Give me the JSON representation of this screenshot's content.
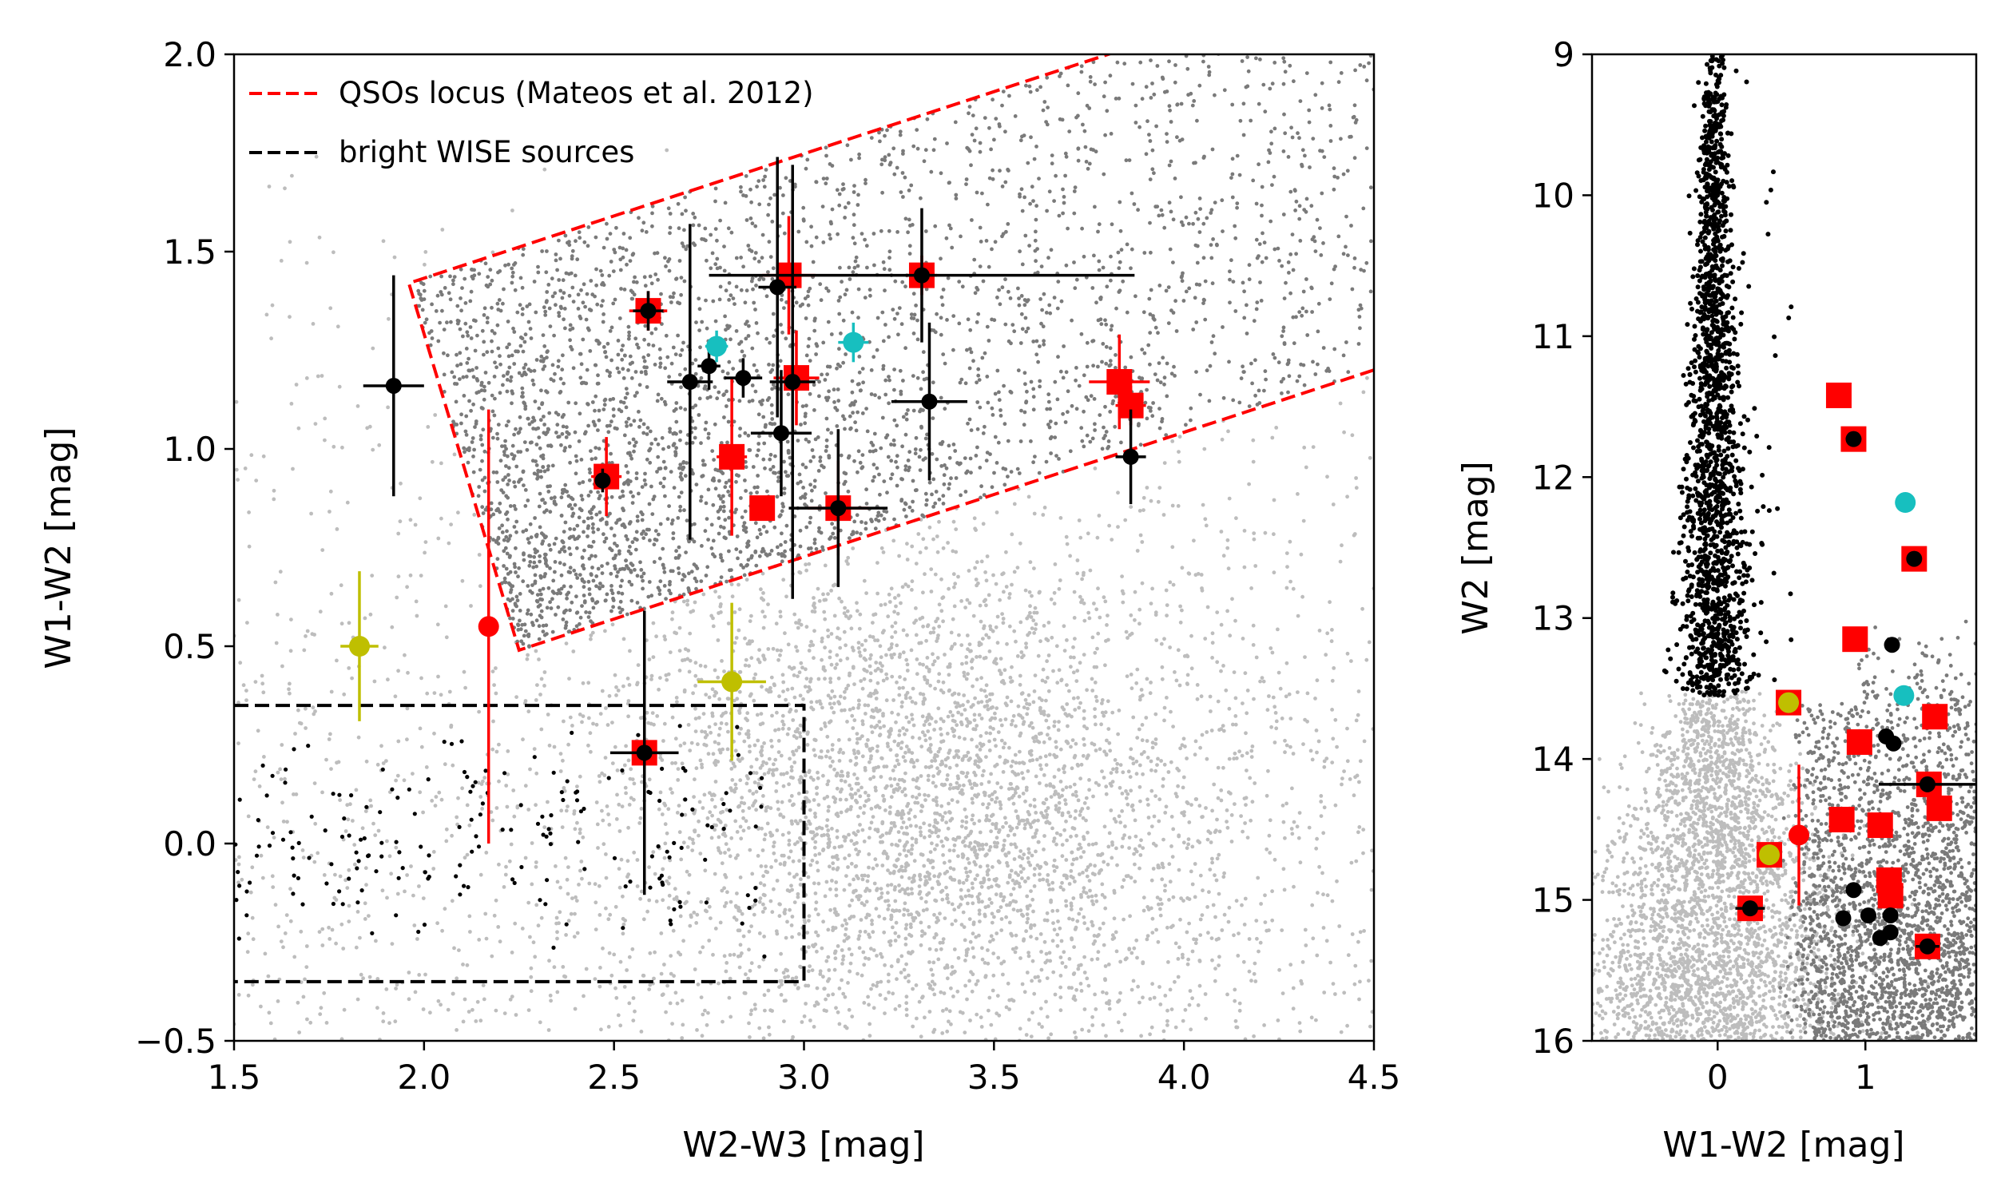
{
  "colors": {
    "background": "#ffffff",
    "light_grey": "#bdbdbd",
    "dark_grey": "#7a7a7a",
    "black": "#000000",
    "red": "#ff0000",
    "cyan": "#17bfbf",
    "olive": "#bfbf00"
  },
  "chart_data": [
    {
      "id": "left",
      "type": "scatter",
      "title": "",
      "xlabel": "W2-W3 [mag]",
      "ylabel": "W1-W2 [mag]",
      "xlim": [
        1.5,
        4.5
      ],
      "ylim": [
        -0.5,
        2.0
      ],
      "xticks": [
        1.5,
        2.0,
        2.5,
        3.0,
        3.5,
        4.0,
        4.5
      ],
      "xtick_labels": [
        "1.5",
        "2.0",
        "2.5",
        "3.0",
        "3.5",
        "4.0",
        "4.5"
      ],
      "yticks": [
        -0.5,
        0.0,
        0.5,
        1.0,
        1.5,
        2.0
      ],
      "ytick_labels": [
        "−0.5",
        "0.0",
        "0.5",
        "1.0",
        "1.5",
        "2.0"
      ],
      "legend": {
        "placement": "upper-left",
        "entries": [
          {
            "label": "QSOs locus (Mateos et al. 2012)",
            "color": "#ff0000",
            "style": "dashed"
          },
          {
            "label": "bright WISE sources",
            "color": "#000000",
            "style": "dashed"
          }
        ]
      },
      "regions": [
        {
          "name": "QSOs locus",
          "color": "#ff0000",
          "style": "dashed",
          "closed": false,
          "path": [
            [
              4.5,
              1.2
            ],
            [
              2.25,
              0.49
            ],
            [
              1.96,
              1.42
            ],
            [
              2.72,
              1.66
            ],
            [
              4.5,
              2.22
            ]
          ]
        },
        {
          "name": "bright WISE sources",
          "color": "#000000",
          "style": "dashed",
          "closed": false,
          "path": [
            [
              1.5,
              0.35
            ],
            [
              3.0,
              0.35
            ],
            [
              3.0,
              -0.35
            ],
            [
              1.5,
              -0.35
            ]
          ]
        }
      ],
      "background_populations": [
        {
          "name": "field sources",
          "color": "#bdbdbd",
          "count": 5200,
          "note": "broad cloud centred near W2-W3 3.3, W1-W2 0.1 with a spread across the panel"
        },
        {
          "name": "sources in QSO locus",
          "color": "#7a7a7a",
          "count": 3400
        },
        {
          "name": "bright WISE sources",
          "color": "#000000",
          "count": 190
        }
      ],
      "series": [
        {
          "name": "red squares",
          "marker": "square",
          "color": "#ff0000",
          "points": [
            {
              "x": 2.48,
              "y": 0.93,
              "xerr": 0.04,
              "yerr": 0.1
            },
            {
              "x": 2.59,
              "y": 1.35,
              "xerr": 0.05,
              "yerr": 0.05
            },
            {
              "x": 2.81,
              "y": 0.98,
              "xerr": 0.04,
              "yerr": 0.2
            },
            {
              "x": 2.89,
              "y": 0.85,
              "xerr": 0.0,
              "yerr": 0.0
            },
            {
              "x": 2.96,
              "y": 1.44,
              "xerr": 0.07,
              "yerr": 0.15
            },
            {
              "x": 2.98,
              "y": 1.18,
              "xerr": 0.06,
              "yerr": 0.12
            },
            {
              "x": 3.09,
              "y": 0.85,
              "xerr": 0.08,
              "yerr": 0.12
            },
            {
              "x": 3.31,
              "y": 1.44,
              "xerr": 0.04,
              "yerr": 0.05
            },
            {
              "x": 3.83,
              "y": 1.17,
              "xerr": 0.08,
              "yerr": 0.12
            },
            {
              "x": 3.86,
              "y": 1.11,
              "xerr": 0.04,
              "yerr": 0.05
            },
            {
              "x": 2.58,
              "y": 0.23,
              "xerr": 0.03,
              "yerr": 0.04
            }
          ]
        },
        {
          "name": "black circles",
          "marker": "circle",
          "color": "#000000",
          "points": [
            {
              "x": 1.92,
              "y": 1.16,
              "xerr": 0.08,
              "yerr": 0.28
            },
            {
              "x": 2.47,
              "y": 0.92,
              "xerr": 0.02,
              "yerr": 0.03
            },
            {
              "x": 2.59,
              "y": 1.35,
              "xerr": 0.04,
              "yerr": 0.05
            },
            {
              "x": 2.7,
              "y": 1.17,
              "xerr": 0.06,
              "yerr": 0.4
            },
            {
              "x": 2.75,
              "y": 1.21,
              "xerr": 0.03,
              "yerr": 0.06
            },
            {
              "x": 2.84,
              "y": 1.18,
              "xerr": 0.05,
              "yerr": 0.05
            },
            {
              "x": 2.93,
              "y": 1.41,
              "xerr": 0.05,
              "yerr": 0.33
            },
            {
              "x": 2.94,
              "y": 1.04,
              "xerr": 0.08,
              "yerr": 0.16
            },
            {
              "x": 2.97,
              "y": 1.17,
              "xerr": 0.06,
              "yerr": 0.55
            },
            {
              "x": 3.09,
              "y": 0.85,
              "xerr": 0.13,
              "yerr": 0.2
            },
            {
              "x": 3.31,
              "y": 1.44,
              "xerr": 0.56,
              "yerr": 0.17
            },
            {
              "x": 3.33,
              "y": 1.12,
              "xerr": 0.1,
              "yerr": 0.2
            },
            {
              "x": 3.86,
              "y": 0.98,
              "xerr": 0.04,
              "yerr": 0.12
            },
            {
              "x": 2.58,
              "y": 0.23,
              "xerr": 0.09,
              "yerr": 0.36
            }
          ]
        },
        {
          "name": "red circles",
          "marker": "circle",
          "color": "#ff0000",
          "points": [
            {
              "x": 2.17,
              "y": 0.55,
              "xerr": 0.0,
              "yerr": 0.55
            }
          ]
        },
        {
          "name": "cyan circles",
          "marker": "circle",
          "color": "#17bfbf",
          "points": [
            {
              "x": 2.77,
              "y": 1.26,
              "xerr": 0.03,
              "yerr": 0.04
            },
            {
              "x": 3.13,
              "y": 1.27,
              "xerr": 0.04,
              "yerr": 0.05
            }
          ]
        },
        {
          "name": "olive circles",
          "marker": "circle",
          "color": "#bfbf00",
          "points": [
            {
              "x": 1.83,
              "y": 0.5,
              "xerr": 0.05,
              "yerr": 0.19
            },
            {
              "x": 2.81,
              "y": 0.41,
              "xerr": 0.09,
              "yerr": 0.2
            }
          ]
        }
      ]
    },
    {
      "id": "right",
      "type": "scatter",
      "title": "",
      "xlabel": "W1-W2 [mag]",
      "ylabel": "W2 [mag]",
      "xlim": [
        -0.85,
        1.75
      ],
      "ylim": [
        16,
        9
      ],
      "y_inverted": true,
      "xticks": [
        0,
        1
      ],
      "xtick_labels": [
        "0",
        "1"
      ],
      "yticks": [
        9,
        10,
        11,
        12,
        13,
        14,
        15,
        16
      ],
      "ytick_labels": [
        "9",
        "10",
        "11",
        "12",
        "13",
        "14",
        "15",
        "16"
      ],
      "background_populations": [
        {
          "name": "bright WISE sources",
          "color": "#000000",
          "count": 1700,
          "note": "narrow sequence at W1-W2 ~ 0, W2 from 9 to 13.5"
        },
        {
          "name": "field sources",
          "color": "#bdbdbd",
          "count": 3200,
          "note": "W2 fainter than ~13.5, W1-W2 ~ 0"
        },
        {
          "name": "sources in QSO locus",
          "color": "#7a7a7a",
          "count": 2600,
          "note": "W2 fainter than ~13, W1-W2 0.5 to 1.75"
        }
      ],
      "series": [
        {
          "name": "red squares",
          "marker": "square",
          "color": "#ff0000",
          "points": [
            {
              "x": 0.82,
              "y": 11.42
            },
            {
              "x": 0.92,
              "y": 11.73
            },
            {
              "x": 1.33,
              "y": 12.58
            },
            {
              "x": 0.93,
              "y": 13.15
            },
            {
              "x": 1.47,
              "y": 13.7
            },
            {
              "x": 0.96,
              "y": 13.88
            },
            {
              "x": 1.43,
              "y": 14.18
            },
            {
              "x": 1.5,
              "y": 14.35
            },
            {
              "x": 0.84,
              "y": 14.43
            },
            {
              "x": 1.1,
              "y": 14.47
            },
            {
              "x": 1.16,
              "y": 14.86
            },
            {
              "x": 1.17,
              "y": 14.97
            },
            {
              "x": 0.48,
              "y": 13.6
            },
            {
              "x": 0.35,
              "y": 14.68
            },
            {
              "x": 0.22,
              "y": 15.06
            },
            {
              "x": 1.42,
              "y": 15.33
            }
          ]
        },
        {
          "name": "black circles",
          "marker": "circle",
          "color": "#000000",
          "points": [
            {
              "x": 0.92,
              "y": 11.73
            },
            {
              "x": 1.33,
              "y": 12.58
            },
            {
              "x": 1.18,
              "y": 13.19
            },
            {
              "x": 1.14,
              "y": 13.84
            },
            {
              "x": 1.19,
              "y": 13.89
            },
            {
              "x": 1.42,
              "y": 14.18,
              "xerr": 0.33
            },
            {
              "x": 0.92,
              "y": 14.93
            },
            {
              "x": 0.85,
              "y": 15.13
            },
            {
              "x": 1.02,
              "y": 15.11
            },
            {
              "x": 1.17,
              "y": 15.11
            },
            {
              "x": 1.1,
              "y": 15.27
            },
            {
              "x": 1.17,
              "y": 15.23
            },
            {
              "x": 0.22,
              "y": 15.06,
              "xerr": 0.1
            },
            {
              "x": 1.42,
              "y": 15.33,
              "xerr": 0.08
            }
          ]
        },
        {
          "name": "red circles",
          "marker": "circle",
          "color": "#ff0000",
          "points": [
            {
              "x": 0.55,
              "y": 14.54,
              "yerr": 0.5
            }
          ]
        },
        {
          "name": "cyan circles",
          "marker": "circle",
          "color": "#17bfbf",
          "points": [
            {
              "x": 1.27,
              "y": 12.18
            },
            {
              "x": 1.26,
              "y": 13.55
            }
          ]
        },
        {
          "name": "olive circles",
          "marker": "circle",
          "color": "#bfbf00",
          "points": [
            {
              "x": 0.48,
              "y": 13.6
            },
            {
              "x": 0.35,
              "y": 14.68
            }
          ]
        }
      ]
    }
  ]
}
